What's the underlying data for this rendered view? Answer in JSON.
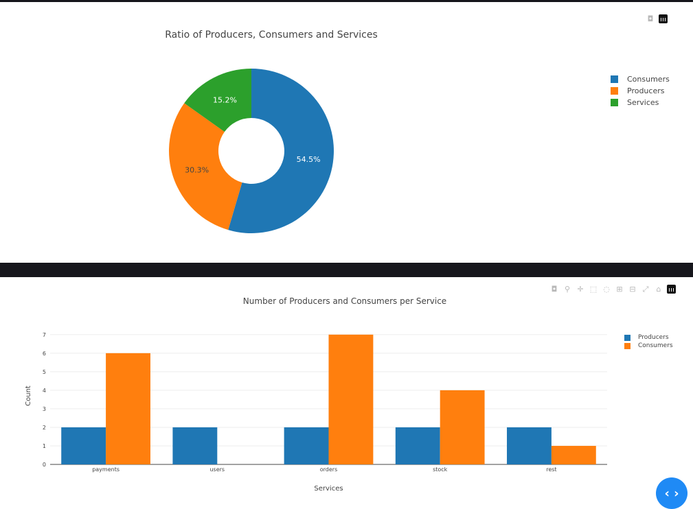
{
  "pie_panel": {
    "modebar": [
      {
        "icon": "camera-icon",
        "glyph": "◘"
      },
      {
        "icon": "plotly-logo-icon",
        "glyph": ""
      }
    ]
  },
  "bar_panel": {
    "modebar": [
      {
        "icon": "camera-icon",
        "glyph": "◘"
      },
      {
        "icon": "zoom-icon",
        "glyph": "⚲"
      },
      {
        "icon": "pan-icon",
        "glyph": "✛"
      },
      {
        "icon": "box-select-icon",
        "glyph": "⬚"
      },
      {
        "icon": "lasso-select-icon",
        "glyph": "◌"
      },
      {
        "icon": "zoom-in-icon",
        "glyph": "⊞"
      },
      {
        "icon": "zoom-out-icon",
        "glyph": "⊟"
      },
      {
        "icon": "autoscale-icon",
        "glyph": "⤢"
      },
      {
        "icon": "reset-axes-icon",
        "glyph": "⌂"
      },
      {
        "icon": "plotly-logo-icon",
        "glyph": ""
      }
    ]
  },
  "fab": {
    "icon": "code-brackets-icon",
    "glyph": "‹ ›",
    "color": "#1f8af5"
  },
  "chart_data": [
    {
      "type": "pie",
      "title": "Ratio of Producers, Consumers and Services",
      "hole": 0.4,
      "labels": [
        "Consumers",
        "Producers",
        "Services"
      ],
      "values": [
        18,
        10,
        5
      ],
      "percent_labels": [
        "54.5%",
        "30.3%",
        "15.2%"
      ],
      "colors": [
        "#1f77b4",
        "#ff7f0e",
        "#2ca02c"
      ],
      "legend_position": "top-right"
    },
    {
      "type": "bar",
      "title": "Number of Producers and Consumers per Service",
      "xlabel": "Services",
      "ylabel": "Count",
      "categories": [
        "payments",
        "users",
        "orders",
        "stock",
        "rest"
      ],
      "series": [
        {
          "name": "Producers",
          "values": [
            2,
            2,
            2,
            2,
            2
          ],
          "color": "#1f77b4"
        },
        {
          "name": "Consumers",
          "values": [
            6,
            0,
            7,
            4,
            1
          ],
          "color": "#ff7f0e"
        }
      ],
      "yticks": [
        0,
        1,
        2,
        3,
        4,
        5,
        6,
        7
      ],
      "ylim": [
        0,
        7.4
      ],
      "grid": true,
      "legend_position": "top-right"
    }
  ]
}
